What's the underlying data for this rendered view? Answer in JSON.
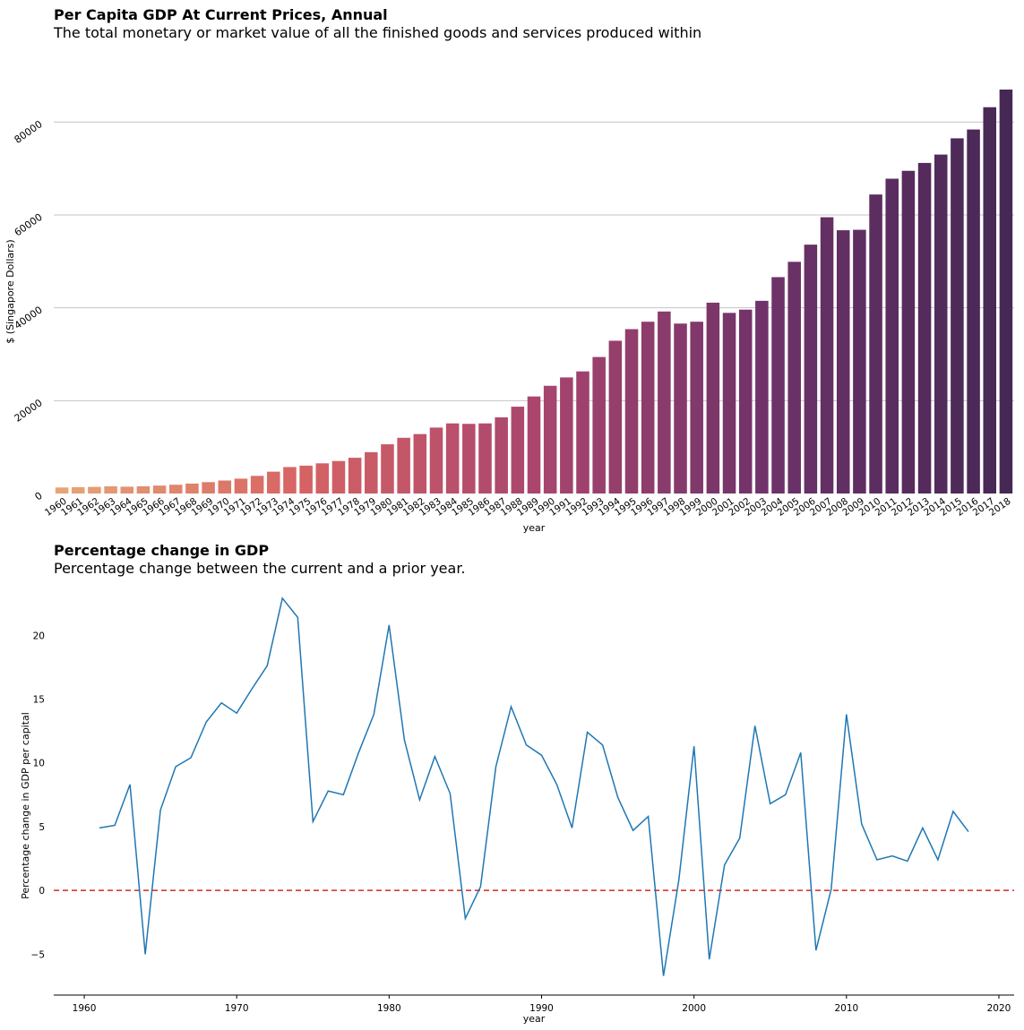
{
  "chart_data": [
    {
      "type": "bar",
      "title": "Per Capita GDP At Current Prices,  Annual",
      "subtitle": "The total monetary or market value of all the finished goods and services produced within",
      "xlabel": "year",
      "ylabel": "$ (Singapore Dollars)",
      "ylim": [
        0,
        87000
      ],
      "yticks": [
        0,
        20000,
        40000,
        60000,
        80000
      ],
      "grid": "horizontal",
      "palette": "flare",
      "categories": [
        "1960",
        "1961",
        "1962",
        "1963",
        "1964",
        "1965",
        "1966",
        "1967",
        "1968",
        "1969",
        "1970",
        "1971",
        "1972",
        "1973",
        "1974",
        "1975",
        "1976",
        "1977",
        "1978",
        "1979",
        "1980",
        "1981",
        "1982",
        "1983",
        "1984",
        "1985",
        "1986",
        "1987",
        "1988",
        "1989",
        "1990",
        "1991",
        "1992",
        "1993",
        "1994",
        "1995",
        "1996",
        "1997",
        "1998",
        "1999",
        "2000",
        "2001",
        "2002",
        "2003",
        "2004",
        "2005",
        "2006",
        "2007",
        "2008",
        "2009",
        "2010",
        "2011",
        "2012",
        "2013",
        "2014",
        "2015",
        "2016",
        "2017",
        "2018"
      ],
      "values": [
        1300,
        1360,
        1430,
        1550,
        1470,
        1560,
        1710,
        1890,
        2140,
        2450,
        2800,
        3200,
        3800,
        4700,
        5700,
        6000,
        6500,
        7000,
        7700,
        8900,
        10600,
        12000,
        12800,
        14200,
        15100,
        15000,
        15100,
        16400,
        18700,
        20900,
        23200,
        25000,
        26300,
        29400,
        32900,
        35400,
        37000,
        39200,
        36600,
        37000,
        41100,
        38900,
        39600,
        41500,
        46600,
        49900,
        53600,
        59500,
        56700,
        56800,
        64400,
        67800,
        69500,
        71200,
        73000,
        76500,
        78400,
        83200,
        87000
      ]
    },
    {
      "type": "line",
      "title": "Percentage change in GDP",
      "subtitle": "Percentage change between the current and a prior year.",
      "xlabel": "year",
      "ylabel": "Percentage change in GDP per capital",
      "xlim": [
        1958,
        2021
      ],
      "ylim": [
        -8.2,
        24.3
      ],
      "xticks": [
        1960,
        1970,
        1980,
        1990,
        2000,
        2010,
        2020
      ],
      "yticks": [
        -5,
        0,
        5,
        10,
        15,
        20
      ],
      "reference_line": {
        "y": 0,
        "style": "dashed",
        "color": "#d62728"
      },
      "line_color": "#1f77b4",
      "x": [
        1961,
        1962,
        1963,
        1964,
        1965,
        1966,
        1967,
        1968,
        1969,
        1970,
        1971,
        1972,
        1973,
        1974,
        1975,
        1976,
        1977,
        1978,
        1979,
        1980,
        1981,
        1982,
        1983,
        1984,
        1985,
        1986,
        1987,
        1988,
        1989,
        1990,
        1991,
        1992,
        1993,
        1994,
        1995,
        1996,
        1997,
        1998,
        1999,
        2000,
        2001,
        2002,
        2003,
        2004,
        2005,
        2006,
        2007,
        2008,
        2009,
        2010,
        2011,
        2012,
        2013,
        2014,
        2015,
        2016,
        2017,
        2018
      ],
      "values": [
        4.9,
        5.1,
        8.3,
        -5.0,
        6.3,
        9.7,
        10.4,
        13.2,
        14.7,
        13.9,
        15.8,
        17.6,
        22.9,
        21.4,
        5.4,
        7.8,
        7.5,
        10.8,
        13.8,
        20.8,
        11.8,
        7.1,
        10.5,
        7.6,
        -2.2,
        0.3,
        9.7,
        14.4,
        11.4,
        10.6,
        8.3,
        4.9,
        12.4,
        11.4,
        7.3,
        4.7,
        5.8,
        -6.7,
        0.8,
        11.3,
        -5.4,
        2.0,
        4.1,
        12.9,
        6.8,
        7.5,
        10.8,
        -4.7,
        0.1,
        13.8,
        5.2,
        2.4,
        2.7,
        2.3,
        4.9,
        2.4,
        6.2,
        4.6
      ]
    }
  ]
}
